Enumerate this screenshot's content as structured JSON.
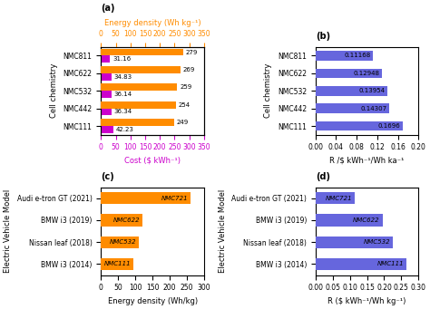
{
  "chart_data": [
    {
      "type": "bar",
      "orientation": "horizontal",
      "annotations": [
        "(a)"
      ],
      "categories": [
        "NMC811",
        "NMC622",
        "NMC532",
        "NMC442",
        "NMC111"
      ],
      "series": [
        {
          "color": "#FF8C00",
          "values": [
            279,
            269,
            259,
            254,
            249
          ],
          "axis": "x2"
        },
        {
          "color": "#CC00CC",
          "values": [
            31.16,
            34.83,
            36.14,
            36.34,
            42.23
          ]
        }
      ],
      "xlabel": "Cost ($ kWh⁻¹)",
      "x2label": "Energy density (Wh kg⁻¹)",
      "ylabel": "Cell chemistry",
      "xlim": [
        0,
        350
      ],
      "xticks": [
        0,
        50,
        100,
        150,
        200,
        250,
        300,
        350
      ],
      "x2lim": [
        0,
        350
      ],
      "x2ticks": [
        0,
        50,
        100,
        150,
        200,
        250,
        300,
        350
      ],
      "data_labels": true,
      "grid": false
    },
    {
      "type": "bar",
      "orientation": "horizontal",
      "annotations": [
        "(b)"
      ],
      "categories": [
        "NMC811",
        "NMC622",
        "NMC532",
        "NMC442",
        "NMC111"
      ],
      "values": [
        0.11168,
        0.12948,
        0.13954,
        0.14307,
        0.1696
      ],
      "color": "#6666DD",
      "xlabel": "R /$ kWh⁻¹/Wh ka⁻¹",
      "ylabel": "Cell chemistry",
      "xlim": [
        0.0,
        0.2
      ],
      "xticks": [
        {
          "value": 0.0,
          "label": "0.00"
        },
        0.04,
        0.08,
        0.12,
        0.16,
        {
          "value": 0.2,
          "label": "0.20"
        }
      ],
      "data_labels": true,
      "grid": false
    },
    {
      "type": "bar",
      "orientation": "horizontal",
      "annotations": [
        "(c)"
      ],
      "categories": [
        "Audi e-tron GT (2021)",
        "BMW i3 (2019)",
        "Nissan leaf (2018)",
        "BMW i3 (2014)"
      ],
      "values": [
        260,
        120,
        110,
        95
      ],
      "bar_labels": [
        "NMC721",
        "NMC622",
        "NMC532",
        "NMC111"
      ],
      "color": "#FF8C00",
      "xlabel": "Energy density (Wh/kg)",
      "ylabel": "Electric Vehicle Model",
      "xlim": [
        0,
        300
      ],
      "xticks": [
        0,
        50,
        100,
        150,
        200,
        250,
        300
      ],
      "data_labels": false,
      "grid": false
    },
    {
      "type": "bar",
      "orientation": "horizontal",
      "annotations": [
        "(d)"
      ],
      "categories": [
        "Audi e-tron GT (2021)",
        "BMW i3 (2019)",
        "Nissan leaf (2018)",
        "BMW i3 (2014)"
      ],
      "values": [
        0.115,
        0.195,
        0.225,
        0.265
      ],
      "bar_labels": [
        "NMC721",
        "NMC622",
        "NMC532",
        "NMC111"
      ],
      "color": "#6666DD",
      "xlabel": "R ($ kWh⁻¹/Wh kg⁻¹)",
      "ylabel": "Electric Vehicle Model",
      "xlim": [
        0.0,
        0.3
      ],
      "xticks": [
        {
          "value": 0.0,
          "label": "0.00"
        },
        0.05,
        {
          "value": 0.1,
          "label": "0.10"
        },
        0.15,
        {
          "value": 0.2,
          "label": "0.20"
        },
        0.25,
        {
          "value": 0.3,
          "label": "0.30"
        }
      ],
      "data_labels": false,
      "grid": false
    }
  ]
}
